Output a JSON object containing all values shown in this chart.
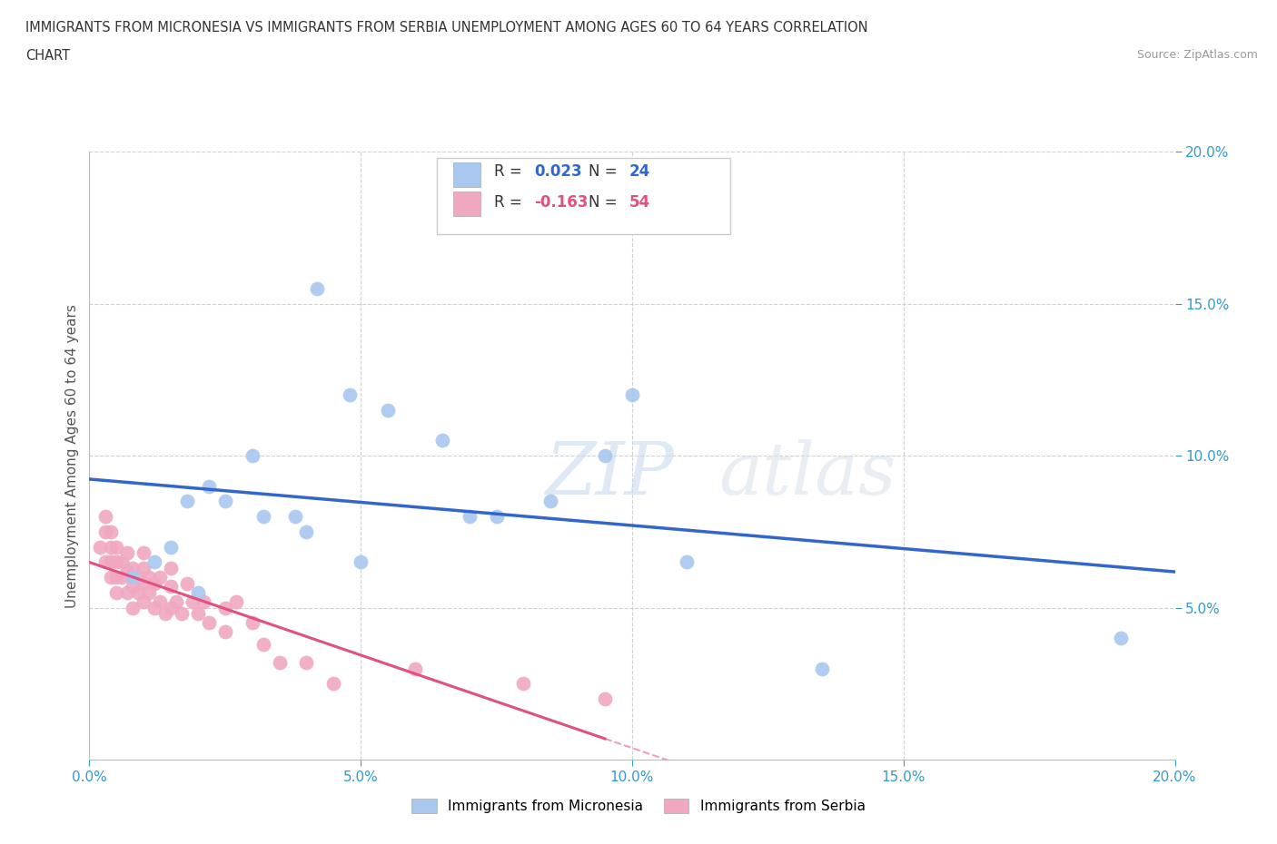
{
  "title_line1": "IMMIGRANTS FROM MICRONESIA VS IMMIGRANTS FROM SERBIA UNEMPLOYMENT AMONG AGES 60 TO 64 YEARS CORRELATION",
  "title_line2": "CHART",
  "source": "Source: ZipAtlas.com",
  "ylabel": "Unemployment Among Ages 60 to 64 years",
  "xlim": [
    0.0,
    0.2
  ],
  "ylim": [
    0.0,
    0.2
  ],
  "xticks": [
    0.0,
    0.05,
    0.1,
    0.15,
    0.2
  ],
  "yticks": [
    0.05,
    0.1,
    0.15,
    0.2
  ],
  "xticklabels": [
    "0.0%",
    "5.0%",
    "10.0%",
    "15.0%",
    "20.0%"
  ],
  "yticklabels": [
    "5.0%",
    "10.0%",
    "15.0%",
    "20.0%"
  ],
  "grid_color": "#cccccc",
  "background_color": "#ffffff",
  "micronesia_color": "#a8c8f0",
  "serbia_color": "#f0a8c0",
  "micronesia_R": 0.023,
  "micronesia_N": 24,
  "serbia_R": -0.163,
  "serbia_N": 54,
  "micronesia_line_color": "#3366cc",
  "serbia_line_color": "#e05080",
  "watermark_text": "ZIPatlas",
  "micronesia_x": [
    0.008,
    0.012,
    0.015,
    0.018,
    0.02,
    0.022,
    0.025,
    0.03,
    0.032,
    0.038,
    0.04,
    0.042,
    0.048,
    0.05,
    0.055,
    0.065,
    0.07,
    0.075,
    0.085,
    0.095,
    0.1,
    0.11,
    0.135,
    0.19
  ],
  "micronesia_y": [
    0.06,
    0.065,
    0.07,
    0.085,
    0.055,
    0.09,
    0.085,
    0.1,
    0.08,
    0.08,
    0.075,
    0.155,
    0.12,
    0.065,
    0.115,
    0.105,
    0.08,
    0.08,
    0.085,
    0.1,
    0.12,
    0.065,
    0.03,
    0.04
  ],
  "serbia_x": [
    0.002,
    0.003,
    0.003,
    0.003,
    0.004,
    0.004,
    0.004,
    0.004,
    0.005,
    0.005,
    0.005,
    0.005,
    0.006,
    0.006,
    0.007,
    0.007,
    0.007,
    0.008,
    0.008,
    0.008,
    0.009,
    0.009,
    0.01,
    0.01,
    0.01,
    0.01,
    0.011,
    0.011,
    0.012,
    0.012,
    0.013,
    0.013,
    0.014,
    0.015,
    0.015,
    0.015,
    0.016,
    0.017,
    0.018,
    0.019,
    0.02,
    0.021,
    0.022,
    0.025,
    0.025,
    0.027,
    0.03,
    0.032,
    0.035,
    0.04,
    0.045,
    0.06,
    0.08,
    0.095
  ],
  "serbia_y": [
    0.07,
    0.065,
    0.075,
    0.08,
    0.06,
    0.065,
    0.07,
    0.075,
    0.055,
    0.06,
    0.065,
    0.07,
    0.06,
    0.065,
    0.055,
    0.062,
    0.068,
    0.05,
    0.057,
    0.063,
    0.055,
    0.06,
    0.052,
    0.058,
    0.063,
    0.068,
    0.055,
    0.06,
    0.05,
    0.058,
    0.052,
    0.06,
    0.048,
    0.05,
    0.057,
    0.063,
    0.052,
    0.048,
    0.058,
    0.052,
    0.048,
    0.052,
    0.045,
    0.05,
    0.042,
    0.052,
    0.045,
    0.038,
    0.032,
    0.032,
    0.025,
    0.03,
    0.025,
    0.02
  ]
}
